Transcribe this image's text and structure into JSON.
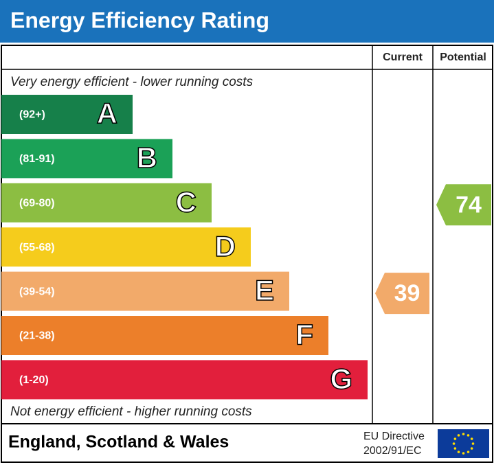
{
  "title": "Energy Efficiency Rating",
  "columns": [
    "Current",
    "Potential"
  ],
  "top_note": "Very energy efficient - lower running costs",
  "bottom_note": "Not energy efficient - higher running costs",
  "bands": [
    {
      "range": "(92+)",
      "letter": "A",
      "color": "#16804a"
    },
    {
      "range": "(81-91)",
      "letter": "B",
      "color": "#1ba157"
    },
    {
      "range": "(69-80)",
      "letter": "C",
      "color": "#8cbe42"
    },
    {
      "range": "(55-68)",
      "letter": "D",
      "color": "#f5cc1c"
    },
    {
      "range": "(39-54)",
      "letter": "E",
      "color": "#f2aa6a"
    },
    {
      "range": "(21-38)",
      "letter": "F",
      "color": "#ec7f2a"
    },
    {
      "range": "(1-20)",
      "letter": "G",
      "color": "#e21f3c"
    }
  ],
  "current": {
    "value": 39,
    "color": "#f2aa6a"
  },
  "potential": {
    "value": 74,
    "color": "#8cbe42"
  },
  "footer": {
    "region": "England, Scotland & Wales",
    "directive": [
      "EU Directive",
      "2002/91/EC"
    ]
  }
}
